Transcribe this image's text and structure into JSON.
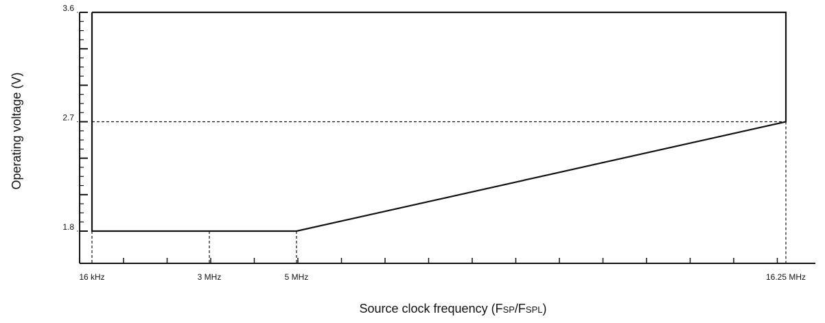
{
  "chart_data": {
    "type": "line",
    "title": "",
    "xlabel": {
      "prefix": "Source clock frequency (F",
      "sub1": "SP",
      "mid": "/F",
      "sub2": "SPL",
      "suffix": ")"
    },
    "ylabel": "Operating voltage (V)",
    "ylim": [
      1.5,
      3.6
    ],
    "x_ticks": [
      {
        "label": "16 kHz",
        "value": 0.016
      },
      {
        "label": "3 MHz",
        "value": 3
      },
      {
        "label": "5 MHz",
        "value": 5
      },
      {
        "label": "16.25 MHz",
        "value": 16.25
      }
    ],
    "y_ticks": [
      {
        "label": "1.8",
        "value": 1.8
      },
      {
        "label": "2.7",
        "value": 2.7
      },
      {
        "label": "3.6",
        "value": 3.6
      }
    ],
    "operating_region": [
      {
        "x": 0.016,
        "y": 3.6
      },
      {
        "x": 16.25,
        "y": 3.6
      },
      {
        "x": 16.25,
        "y": 2.7
      },
      {
        "x": 5,
        "y": 1.8
      },
      {
        "x": 0.016,
        "y": 1.8
      }
    ],
    "reference_lines": [
      {
        "type": "horizontal",
        "y": 2.7,
        "x_from": 0.016,
        "x_to": 16.25
      },
      {
        "type": "vertical",
        "x": 0.016,
        "y_from": 1.5,
        "y_to": 1.8
      },
      {
        "type": "vertical",
        "x": 3,
        "y_from": 1.5,
        "y_to": 1.8
      },
      {
        "type": "vertical",
        "x": 5,
        "y_from": 1.5,
        "y_to": 1.8
      },
      {
        "type": "vertical",
        "x": 16.25,
        "y_from": 1.5,
        "y_to": 2.7
      }
    ],
    "grid": false,
    "legend": "none"
  }
}
